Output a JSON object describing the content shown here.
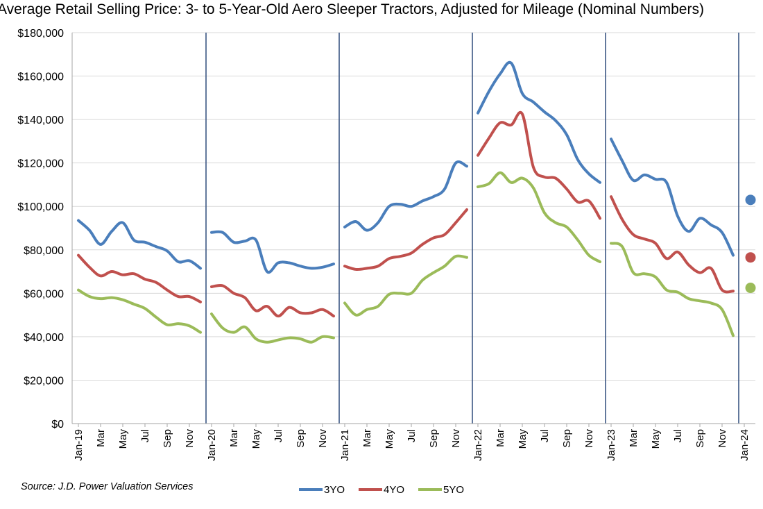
{
  "chart_data": {
    "type": "line",
    "title": "Average Retail Selling Price: 3- to 5-Year-Old Aero Sleeper Tractors, Adjusted for Mileage (Nominal Numbers)",
    "source": "Source: J.D. Power Valuation Services",
    "ylim": [
      0,
      180000
    ],
    "yticks": [
      {
        "value": 0,
        "label": "$0"
      },
      {
        "value": 20000,
        "label": "$20,000"
      },
      {
        "value": 40000,
        "label": "$40,000"
      },
      {
        "value": 60000,
        "label": "$60,000"
      },
      {
        "value": 80000,
        "label": "$80,000"
      },
      {
        "value": 100000,
        "label": "$100,000"
      },
      {
        "value": 120000,
        "label": "$120,000"
      },
      {
        "value": 140000,
        "label": "$140,000"
      },
      {
        "value": 160000,
        "label": "$160,000"
      },
      {
        "value": 180000,
        "label": "$180,000"
      }
    ],
    "xticks": [
      {
        "index": 0,
        "label": "Jan-19"
      },
      {
        "index": 2,
        "label": "Mar"
      },
      {
        "index": 4,
        "label": "May"
      },
      {
        "index": 6,
        "label": "Jul"
      },
      {
        "index": 8,
        "label": "Sep"
      },
      {
        "index": 10,
        "label": "Nov"
      },
      {
        "index": 12,
        "label": "Jan-20"
      },
      {
        "index": 14,
        "label": "Mar"
      },
      {
        "index": 16,
        "label": "May"
      },
      {
        "index": 18,
        "label": "Jul"
      },
      {
        "index": 20,
        "label": "Sep"
      },
      {
        "index": 22,
        "label": "Nov"
      },
      {
        "index": 24,
        "label": "Jan-21"
      },
      {
        "index": 26,
        "label": "Mar"
      },
      {
        "index": 28,
        "label": "May"
      },
      {
        "index": 30,
        "label": "Jul"
      },
      {
        "index": 32,
        "label": "Sep"
      },
      {
        "index": 34,
        "label": "Nov"
      },
      {
        "index": 36,
        "label": "Jan-22"
      },
      {
        "index": 38,
        "label": "Mar"
      },
      {
        "index": 40,
        "label": "May"
      },
      {
        "index": 42,
        "label": "Jul"
      },
      {
        "index": 44,
        "label": "Sep"
      },
      {
        "index": 46,
        "label": "Nov"
      },
      {
        "index": 48,
        "label": "Jan-23"
      },
      {
        "index": 50,
        "label": "Mar"
      },
      {
        "index": 52,
        "label": "May"
      },
      {
        "index": 54,
        "label": "Jul"
      },
      {
        "index": 56,
        "label": "Sep"
      },
      {
        "index": 58,
        "label": "Nov"
      },
      {
        "index": 60,
        "label": "Jan-24"
      }
    ],
    "year_separators": [
      "Jan-20",
      "Jan-21",
      "Jan-22",
      "Jan-23",
      "Jan-24"
    ],
    "legend_position": "bottom",
    "grid": true,
    "series": [
      {
        "name": "3YO",
        "color": "#4a7ebb",
        "segments": [
          [
            93500,
            89000,
            82500,
            88500,
            92500,
            84500,
            83500,
            81500,
            79500,
            74500,
            75000,
            71500
          ],
          [
            88000,
            88000,
            83500,
            84000,
            84500,
            70000,
            74000,
            74000,
            72500,
            71500,
            72000,
            73500
          ],
          [
            90500,
            93000,
            89000,
            92500,
            100000,
            101000,
            100000,
            102500,
            104500,
            108000,
            120000,
            118500
          ],
          [
            143000,
            153000,
            161000,
            166000,
            152000,
            148000,
            143500,
            139500,
            133000,
            121500,
            115000,
            111000
          ],
          [
            131000,
            121000,
            112000,
            114500,
            112500,
            111000,
            95500,
            88500,
            94500,
            91500,
            88000,
            77500
          ]
        ],
        "jan24": 103000
      },
      {
        "name": "4YO",
        "color": "#c0504d",
        "segments": [
          [
            77500,
            72000,
            68000,
            70000,
            68500,
            69000,
            66500,
            65000,
            61500,
            58500,
            58500,
            56000
          ],
          [
            63000,
            63500,
            60000,
            58000,
            52000,
            54000,
            49500,
            53500,
            51000,
            51000,
            52500,
            49500
          ],
          [
            72500,
            71000,
            71500,
            72500,
            76000,
            77000,
            78500,
            82500,
            85500,
            87000,
            92500,
            98500
          ],
          [
            123500,
            131500,
            138500,
            137500,
            142500,
            118000,
            113500,
            113000,
            108000,
            102000,
            102500,
            94500
          ],
          [
            104500,
            94000,
            87000,
            85000,
            83000,
            76000,
            79000,
            73000,
            69500,
            71500,
            61500,
            61000
          ]
        ],
        "jan24": 76500
      },
      {
        "name": "5YO",
        "color": "#9bbb59",
        "segments": [
          [
            61500,
            58500,
            57500,
            58000,
            57000,
            55000,
            53000,
            49000,
            45500,
            46000,
            45000,
            42000
          ],
          [
            50500,
            44000,
            42000,
            44500,
            39000,
            37500,
            38500,
            39500,
            39000,
            37500,
            40000,
            39500
          ],
          [
            55500,
            50000,
            52500,
            54000,
            59500,
            60000,
            60000,
            66000,
            69500,
            72500,
            77000,
            76500
          ],
          [
            109000,
            110500,
            115500,
            111000,
            113000,
            108500,
            97000,
            92500,
            90500,
            84500,
            77500,
            74500
          ],
          [
            83000,
            81500,
            69500,
            69000,
            67500,
            61500,
            60500,
            57500,
            56500,
            55500,
            52500,
            40500
          ]
        ],
        "jan24": 62500
      }
    ]
  }
}
